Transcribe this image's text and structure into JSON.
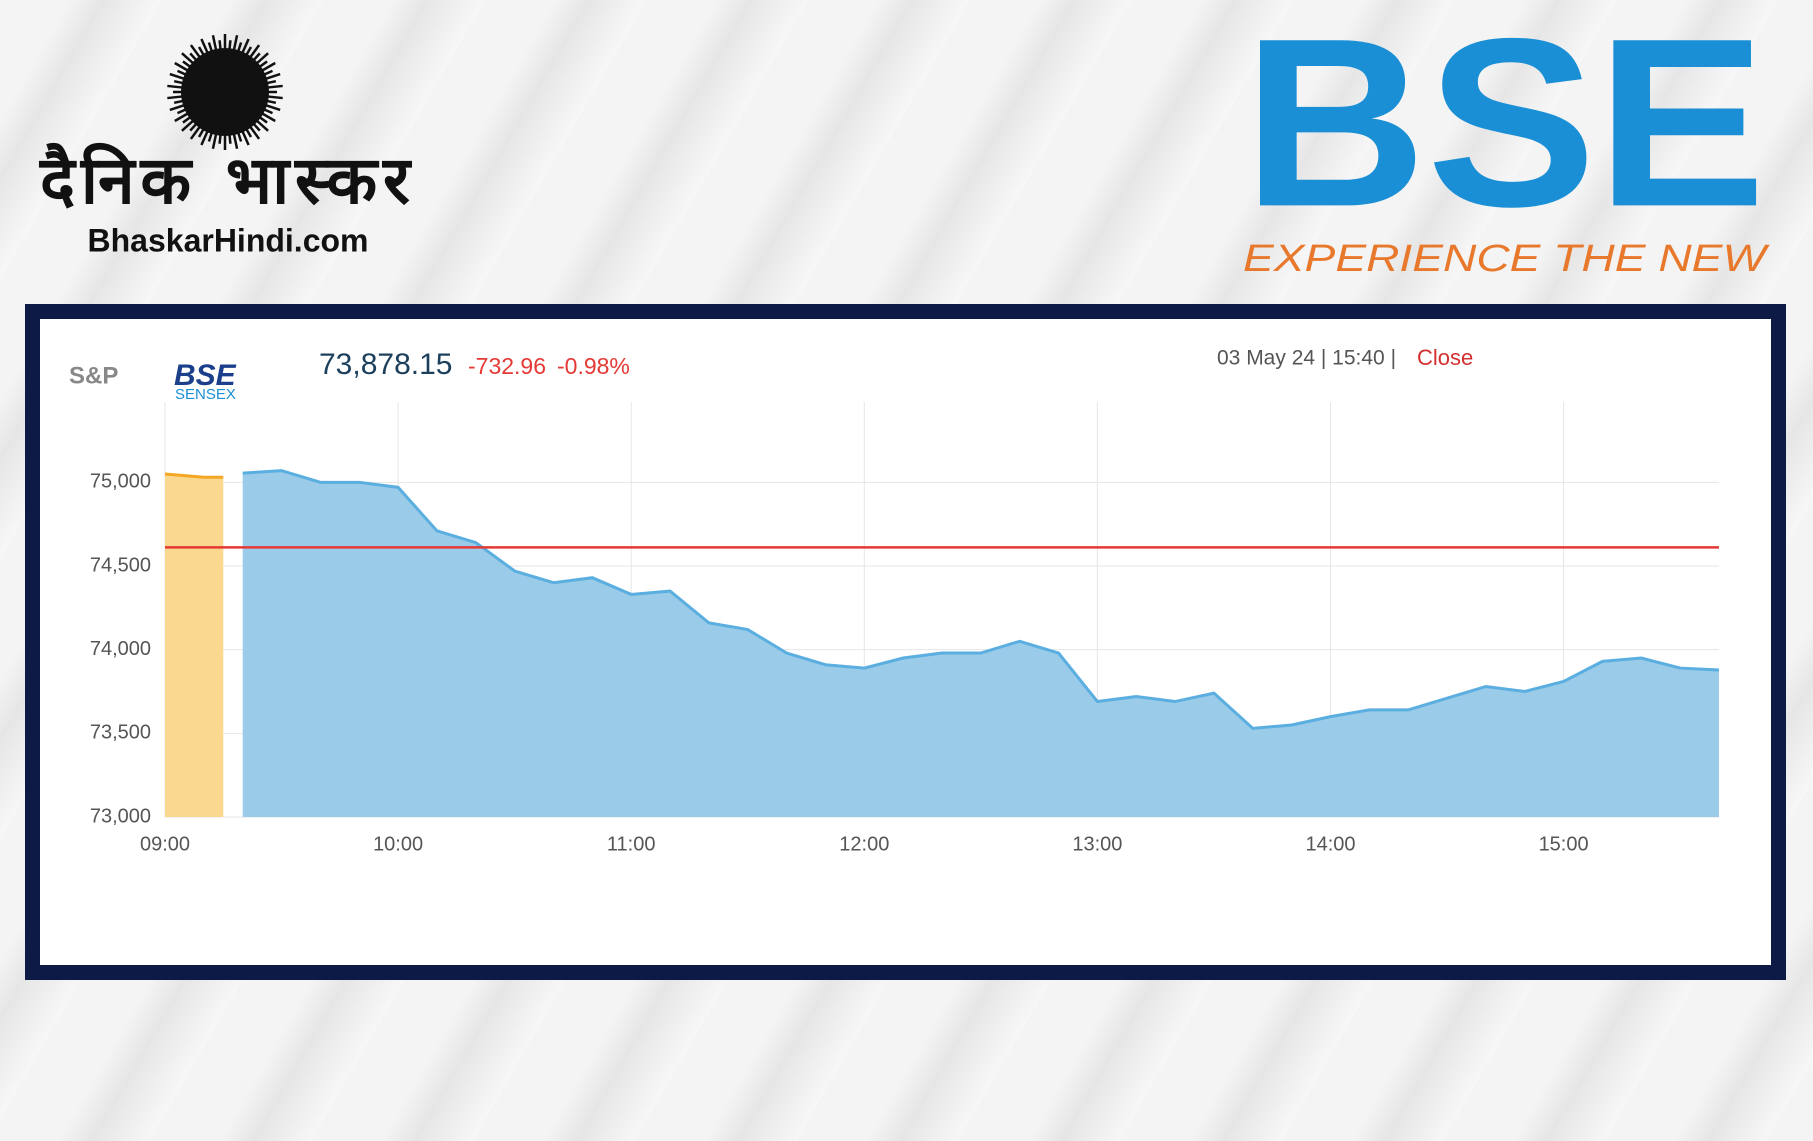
{
  "branding": {
    "left_logo": {
      "title": "दैनिक भास्कर",
      "site": "BhaskarHindi.com"
    },
    "right_logo": {
      "title": "BSE",
      "tagline": "EXPERIENCE THE NEW"
    }
  },
  "ticker": {
    "brand_prefix": "S&P",
    "brand": "BSE",
    "index": "SENSEX",
    "price": "73,878.15",
    "change": "-732.96",
    "change_pct": "-0.98%",
    "timestamp": "03 May 24 | 15:40 |",
    "status": "Close"
  },
  "chart_data": {
    "type": "area",
    "categories": [
      "09:00",
      null,
      null,
      null,
      null,
      null,
      "10:00",
      null,
      null,
      null,
      null,
      null,
      "11:00",
      null,
      null,
      null,
      null,
      null,
      "12:00",
      null,
      null,
      null,
      null,
      null,
      "13:00",
      null,
      null,
      null,
      null,
      null,
      "14:00",
      null,
      null,
      null,
      null,
      null,
      "15:00",
      null,
      null,
      null,
      null
    ],
    "series": [
      {
        "color": "#f5a623",
        "fill": "#fbd88f",
        "values": [
          75050,
          75030,
          null,
          null,
          null,
          null,
          null,
          null,
          null,
          null,
          null,
          null,
          null,
          null,
          null,
          null,
          null,
          null,
          null,
          null,
          null,
          null,
          null,
          null,
          null,
          null,
          null,
          null,
          null,
          null,
          null,
          null,
          null,
          null,
          null,
          null,
          null,
          null,
          null,
          null,
          null
        ]
      },
      {
        "color": "#5aaee0",
        "fill": "#9acbe8",
        "values": [
          null,
          null,
          75055,
          75070,
          75000,
          75000,
          74970,
          74710,
          74640,
          74470,
          74400,
          74430,
          74330,
          74350,
          74160,
          74120,
          73980,
          73910,
          73890,
          73950,
          73980,
          73980,
          74050,
          73980,
          73690,
          73720,
          73690,
          73740,
          73530,
          73550,
          73600,
          73640,
          73640,
          73710,
          73780,
          73750,
          73810,
          73930,
          73950,
          73890,
          73878.15
        ]
      }
    ],
    "reference_line": {
      "value": 74611.11,
      "color": "#e53935"
    },
    "ylim": [
      73000,
      75480
    ],
    "yticks": [
      {
        "value": 73000,
        "label": "73,000"
      },
      {
        "value": 73500,
        "label": "73,500"
      },
      {
        "value": 74000,
        "label": "74,000"
      },
      {
        "value": 74500,
        "label": "74,500"
      },
      {
        "value": 75000,
        "label": "75,000"
      }
    ],
    "grid": true
  }
}
